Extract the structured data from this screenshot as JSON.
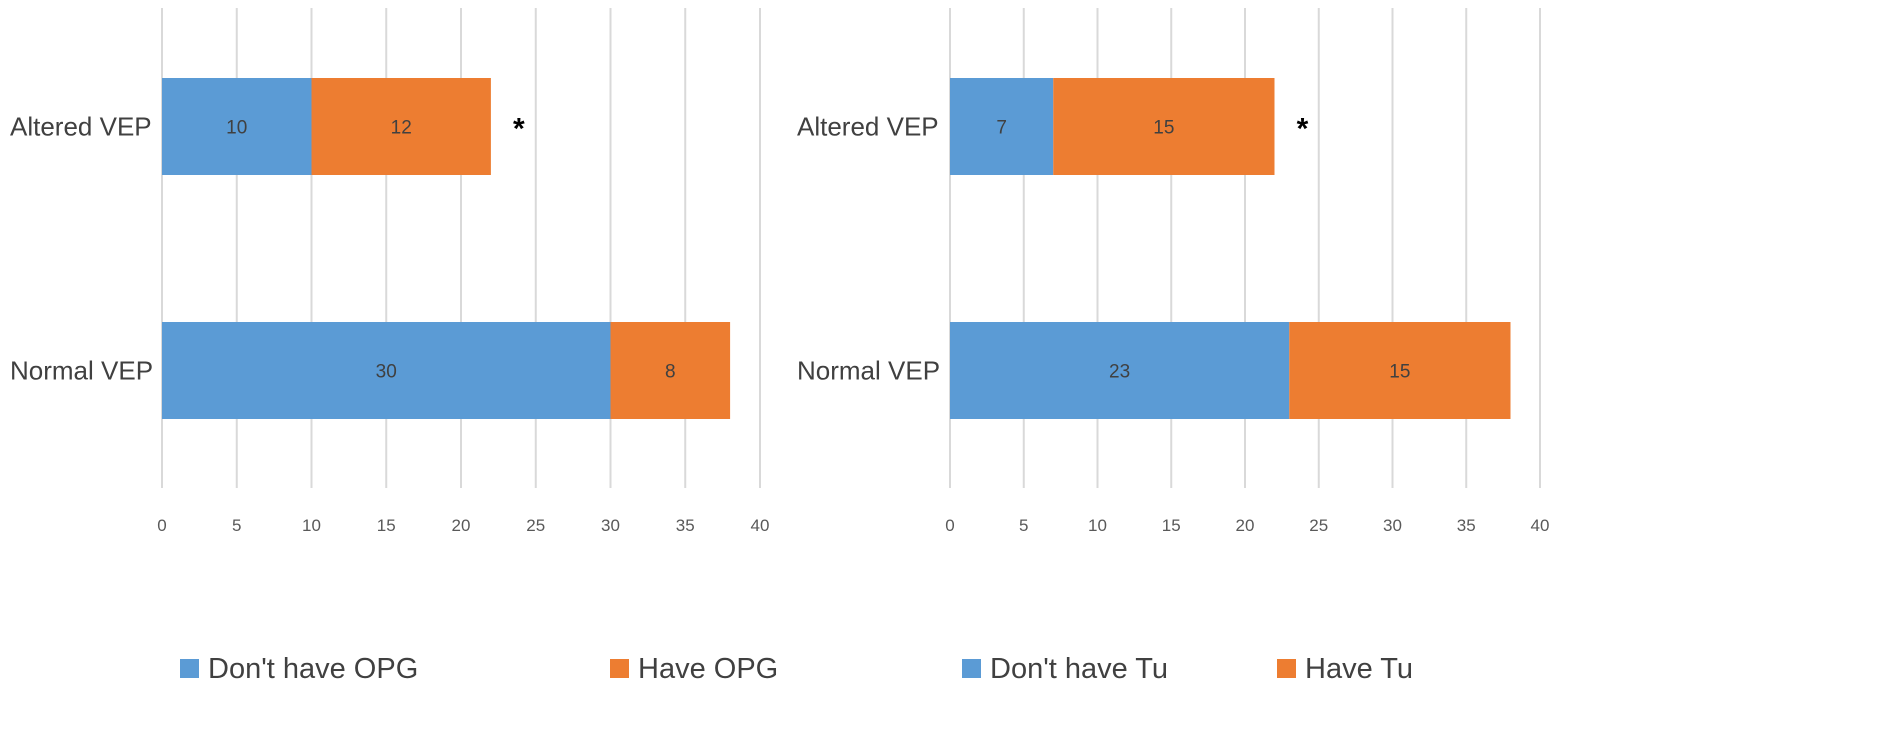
{
  "chart_data": [
    {
      "type": "bar",
      "orientation": "horizontal",
      "stacked": true,
      "categories": [
        "Altered VEP",
        "Normal VEP"
      ],
      "series": [
        {
          "name": "Don't have OPG",
          "values": [
            10,
            30
          ],
          "color": "#5b9bd5"
        },
        {
          "name": "Have OPG",
          "values": [
            12,
            8
          ],
          "color": "#ed7d31"
        }
      ],
      "xlim": [
        0,
        40
      ],
      "xticks": [
        0,
        5,
        10,
        15,
        20,
        25,
        30,
        35,
        40
      ],
      "grid": true,
      "legend": "bottom",
      "annotations": [
        {
          "category": "Altered VEP",
          "text": "*"
        }
      ],
      "title": "",
      "xlabel": "",
      "ylabel": ""
    },
    {
      "type": "bar",
      "orientation": "horizontal",
      "stacked": true,
      "categories": [
        "Altered VEP",
        "Normal VEP"
      ],
      "series": [
        {
          "name": "Don't have Tu",
          "values": [
            7,
            23
          ],
          "color": "#5b9bd5"
        },
        {
          "name": "Have Tu",
          "values": [
            15,
            15
          ],
          "color": "#ed7d31"
        }
      ],
      "xlim": [
        0,
        40
      ],
      "xticks": [
        0,
        5,
        10,
        15,
        20,
        25,
        30,
        35,
        40
      ],
      "grid": true,
      "legend": "bottom",
      "annotations": [
        {
          "category": "Altered VEP",
          "text": "*"
        }
      ],
      "title": "",
      "xlabel": "",
      "ylabel": ""
    }
  ]
}
